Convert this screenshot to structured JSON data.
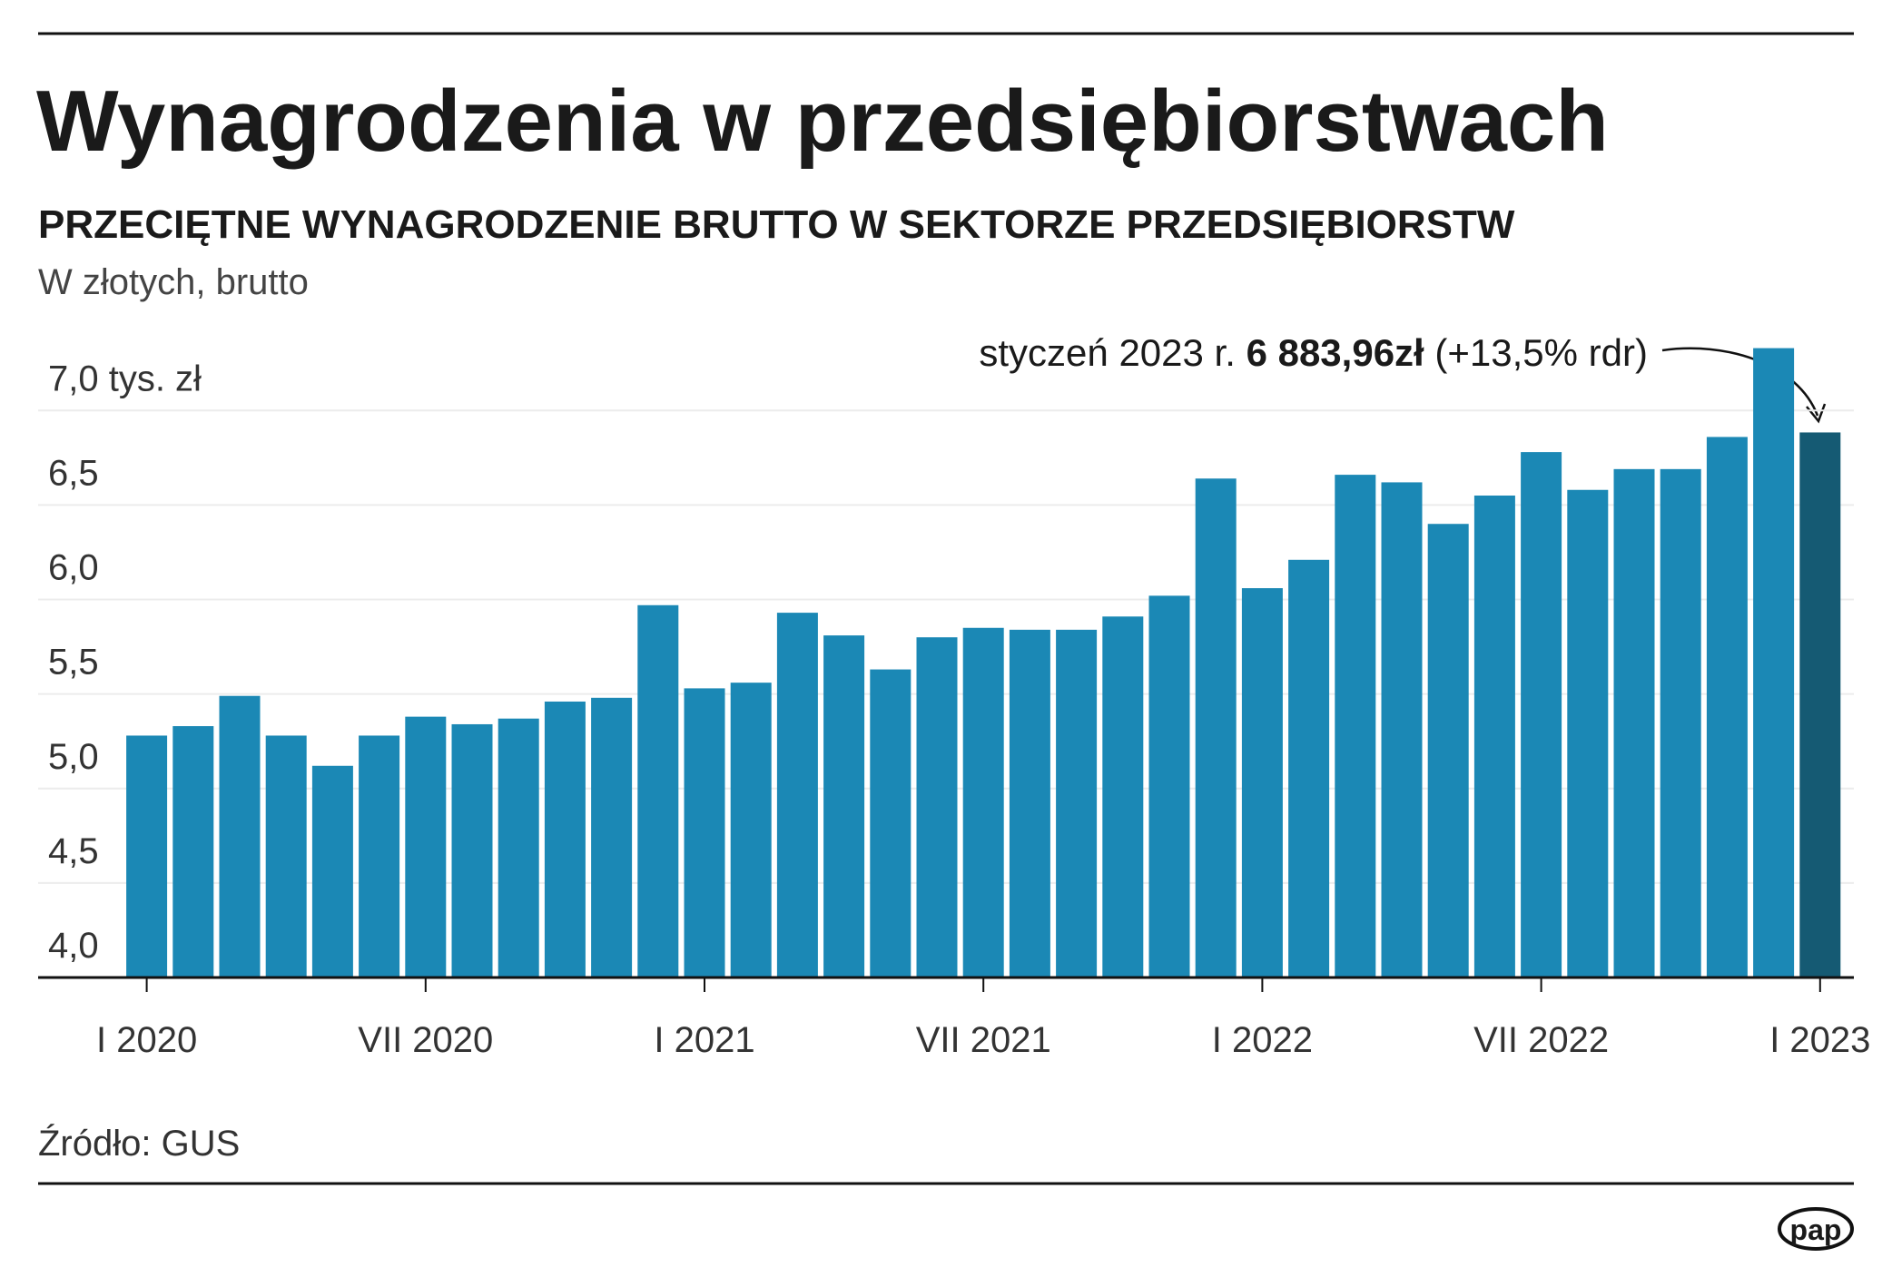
{
  "chart_data": {
    "type": "bar",
    "title": "Wynagrodzenia w przedsiębiorstwach",
    "subtitle": "PRZECIĘTNE WYNAGRODZENIE BRUTTO W SEKTORZE PRZEDSIĘBIORSTW",
    "unit_note": "W złotych, brutto",
    "source": "Źródło: GUS",
    "logo": "pap",
    "annotation": {
      "prefix": "styczeń 2023 r.",
      "value": "6 883,96zł",
      "suffix": "(+13,5% rdr)"
    },
    "categories": [
      "I 2020",
      null,
      null,
      null,
      null,
      null,
      "VII 2020",
      null,
      null,
      null,
      null,
      null,
      "I 2021",
      null,
      null,
      null,
      null,
      null,
      "VII 2021",
      null,
      null,
      null,
      null,
      null,
      "I 2022",
      null,
      null,
      null,
      null,
      null,
      "VII 2022",
      null,
      null,
      null,
      null,
      null,
      "I 2023"
    ],
    "values": [
      5.28,
      5.33,
      5.49,
      5.28,
      5.12,
      5.28,
      5.38,
      5.34,
      5.37,
      5.46,
      5.48,
      5.97,
      5.53,
      5.56,
      5.93,
      5.81,
      5.63,
      5.8,
      5.85,
      5.84,
      5.84,
      5.91,
      6.02,
      6.64,
      6.06,
      6.21,
      6.66,
      6.62,
      6.4,
      6.55,
      6.78,
      6.58,
      6.69,
      6.69,
      6.86,
      7.33,
      6.88396
    ],
    "colors": [
      "#1b88b5",
      "#1b88b5",
      "#1b88b5",
      "#1b88b5",
      "#1b88b5",
      "#1b88b5",
      "#1b88b5",
      "#1b88b5",
      "#1b88b5",
      "#1b88b5",
      "#1b88b5",
      "#1b88b5",
      "#1b88b5",
      "#1b88b5",
      "#1b88b5",
      "#1b88b5",
      "#1b88b5",
      "#1b88b5",
      "#1b88b5",
      "#1b88b5",
      "#1b88b5",
      "#1b88b5",
      "#1b88b5",
      "#1b88b5",
      "#1b88b5",
      "#1b88b5",
      "#1b88b5",
      "#1b88b5",
      "#1b88b5",
      "#1b88b5",
      "#1b88b5",
      "#1b88b5",
      "#1b88b5",
      "#1b88b5",
      "#1b88b5",
      "#1b88b5",
      "#155a73"
    ],
    "ylim": [
      4,
      7.4
    ],
    "yticks": [
      {
        "value": 4,
        "label": "4,0"
      },
      {
        "value": 4.5,
        "label": "4,5"
      },
      {
        "value": 5,
        "label": "5,0"
      },
      {
        "value": 5.5,
        "label": "5,5"
      },
      {
        "value": 6,
        "label": "6,0"
      },
      {
        "value": 6.5,
        "label": "6,5"
      },
      {
        "value": 7,
        "label": "7,0 tys. zł"
      }
    ],
    "grid": true
  }
}
